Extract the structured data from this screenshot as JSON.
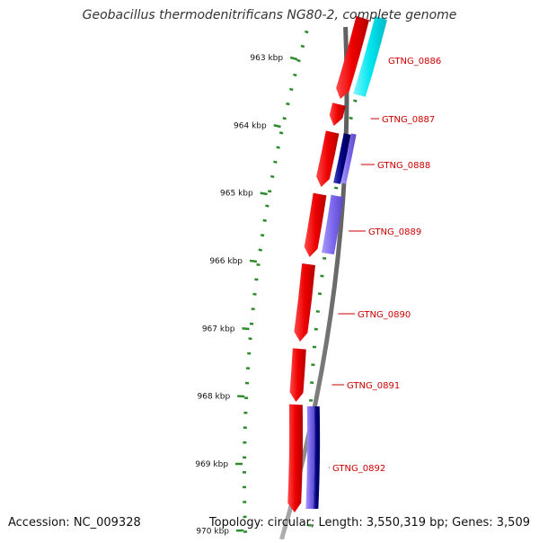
{
  "title": "Geobacillus thermodenitrificans NG80-2, complete genome",
  "footer": {
    "accession": "Accession: NC_009328",
    "topology": "Topology: circular; Length: 3,550,319 bp; Genes: 3,509"
  },
  "colors": {
    "backbone": "#808080",
    "tick": "#2e8b2e",
    "gene_forward": "#ff0000",
    "gene_light_blue": "#00e5ee",
    "gene_purple": "#7b68ee",
    "gene_navy": "#000080",
    "label": "#cc0000"
  },
  "ruler": [
    {
      "kbp": 963,
      "label": "963 kbp"
    },
    {
      "kbp": 964,
      "label": "964 kbp"
    },
    {
      "kbp": 965,
      "label": "965 kbp"
    },
    {
      "kbp": 966,
      "label": "966 kbp"
    },
    {
      "kbp": 967,
      "label": "967 kbp"
    },
    {
      "kbp": 968,
      "label": "968 kbp"
    },
    {
      "kbp": 969,
      "label": "969 kbp"
    },
    {
      "kbp": 970,
      "label": "970 kbp"
    }
  ],
  "genes": [
    {
      "id": "GTNG_0886",
      "label": "GTNG_0886",
      "strand": "+",
      "class": "light-blue"
    },
    {
      "id": "GTNG_0887",
      "label": "GTNG_0887",
      "strand": "+",
      "class": "none"
    },
    {
      "id": "GTNG_0888",
      "label": "GTNG_0888",
      "strand": "+",
      "class": "navy"
    },
    {
      "id": "GTNG_0889",
      "label": "GTNG_0889",
      "strand": "+",
      "class": "purple"
    },
    {
      "id": "GTNG_0890",
      "label": "GTNG_0890",
      "strand": "+",
      "class": "none"
    },
    {
      "id": "GTNG_0891",
      "label": "GTNG_0891",
      "strand": "+",
      "class": "none"
    },
    {
      "id": "GTNG_0892",
      "label": "GTNG_0892",
      "strand": "+",
      "class": "purple-navy"
    }
  ]
}
